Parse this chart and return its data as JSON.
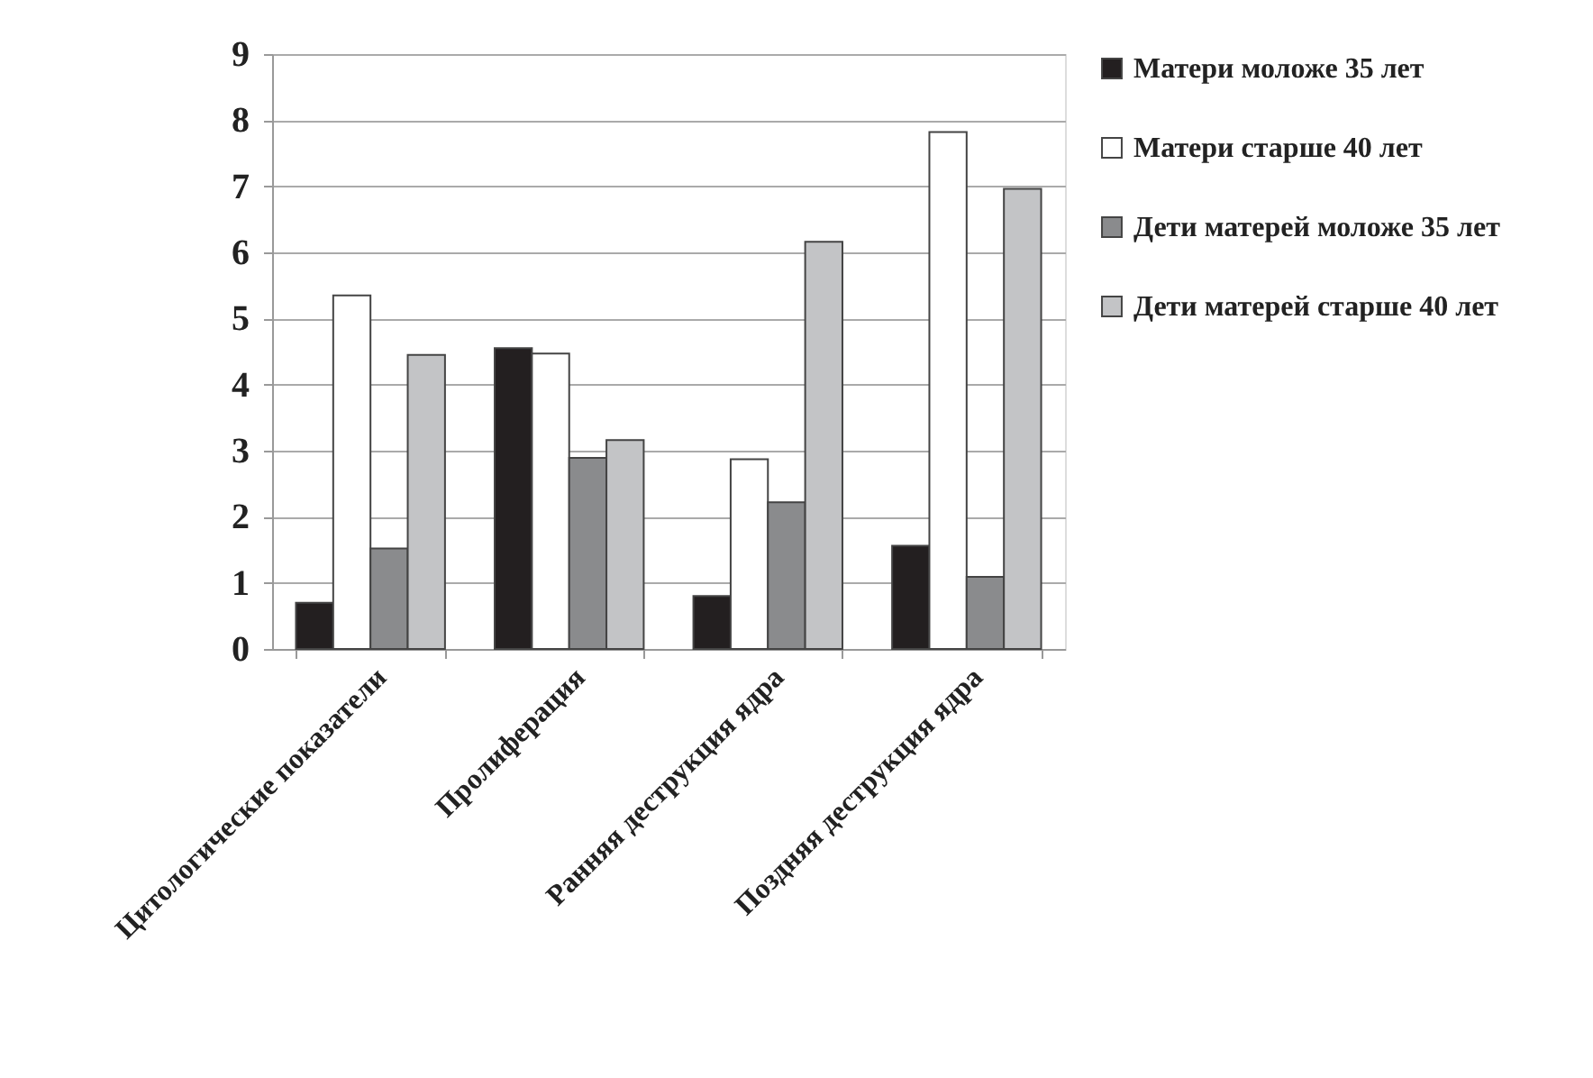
{
  "chart_data": {
    "type": "bar",
    "categories": [
      "Цитологические показатели",
      "Пролиферация",
      "Ранняя деструкция ядра",
      "Поздняя деструкция ядра"
    ],
    "series": [
      {
        "name": "Матери моложе 35 лет",
        "color": "#231f20",
        "values": [
          0.7,
          4.55,
          0.8,
          1.56
        ]
      },
      {
        "name": "Матери старше 40 лет",
        "color": "#ffffff",
        "values": [
          5.35,
          4.47,
          2.87,
          7.82
        ]
      },
      {
        "name": "Дети матерей моложе 35 лет",
        "color": "#8a8b8d",
        "values": [
          1.52,
          2.89,
          2.22,
          1.09
        ]
      },
      {
        "name": "Дети матерей старше 40 лет",
        "color": "#c3c4c6",
        "values": [
          4.45,
          3.16,
          6.16,
          6.96
        ]
      }
    ],
    "ylim": [
      0,
      9
    ],
    "yticks": [
      0,
      1,
      2,
      3,
      4,
      5,
      6,
      7,
      8,
      9
    ],
    "grid": "y",
    "legend": "right"
  }
}
